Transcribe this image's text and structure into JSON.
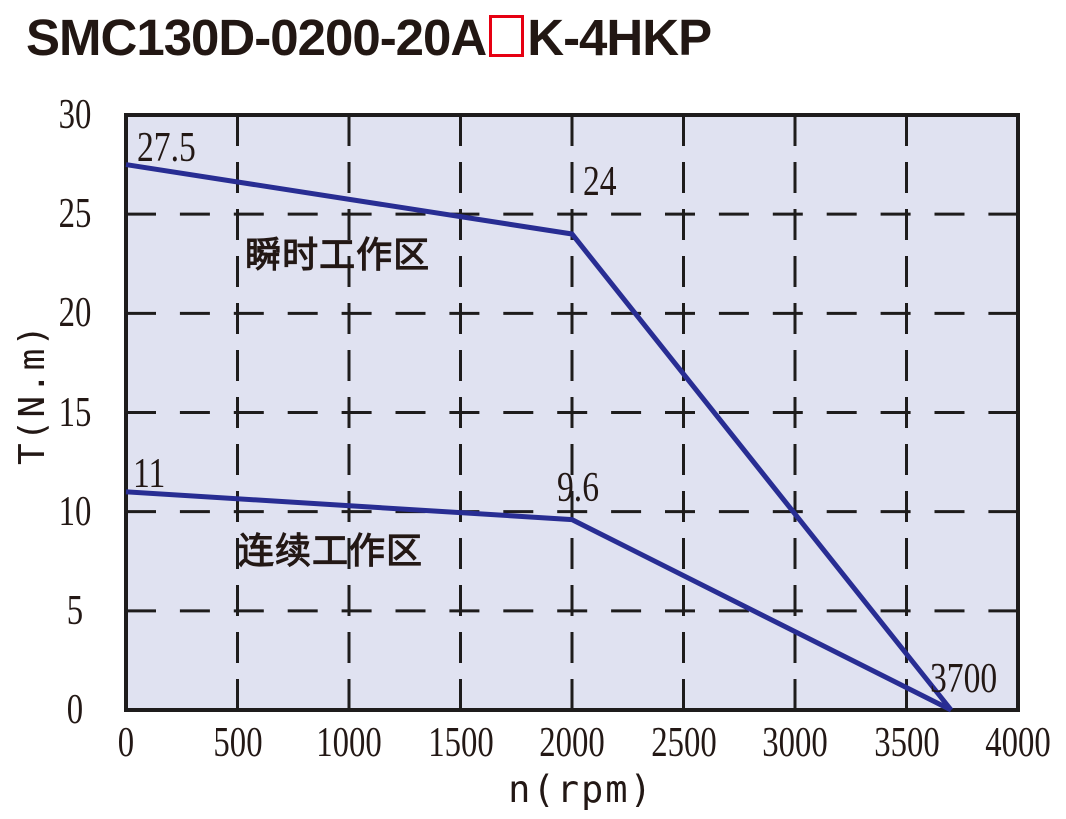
{
  "page": {
    "title": {
      "prefix": "SMC130D-0200-20A",
      "placeholder_box": "□",
      "suffix": "K-4HKP"
    }
  },
  "colors": {
    "curve": "#282d93",
    "plot_background": "#e0e2f1",
    "grid": "#1e1c1c",
    "border": "#1e1c1c",
    "text": "#231815",
    "title_text": "#221713",
    "placeholder_box_red": "#e60012"
  },
  "chart_data": {
    "type": "line",
    "title": "SMC130D-0200-20A□K-4HKP",
    "xlabel": "n(rpm)",
    "ylabel": "T(N.m)",
    "xlim": [
      0,
      4000
    ],
    "ylim": [
      0,
      30
    ],
    "x_ticks": [
      0,
      500,
      1000,
      1500,
      2000,
      2500,
      3000,
      3500,
      4000
    ],
    "y_ticks": [
      0,
      5,
      10,
      15,
      20,
      25,
      30
    ],
    "grid": "dashed",
    "legend_position": "none",
    "series": [
      {
        "name": "瞬时工作区",
        "description": "instantaneous working zone boundary",
        "color": "#282d93",
        "points": [
          [
            0,
            27.5
          ],
          [
            2000,
            24
          ],
          [
            3700,
            0
          ]
        ]
      },
      {
        "name": "连续工作区",
        "description": "continuous working zone boundary",
        "color": "#282d93",
        "points": [
          [
            0,
            11
          ],
          [
            2000,
            9.6
          ],
          [
            3700,
            0
          ]
        ]
      }
    ],
    "annotations": [
      {
        "text": "27.5",
        "n": 49,
        "T": 29.4,
        "kind": "value"
      },
      {
        "text": "24",
        "n": 2049,
        "T": 27.7,
        "kind": "value"
      },
      {
        "text": "11",
        "n": 31,
        "T": 12.95,
        "kind": "value"
      },
      {
        "text": "9.6",
        "n": 1933,
        "T": 12.25,
        "kind": "value"
      },
      {
        "text": "3700",
        "n": 3605,
        "T": 2.62,
        "kind": "value"
      },
      {
        "text": "瞬时工作区",
        "n": 534,
        "T": 23.85,
        "kind": "region"
      },
      {
        "text": "连续工作区",
        "n": 502,
        "T": 8.9,
        "kind": "region"
      }
    ]
  }
}
